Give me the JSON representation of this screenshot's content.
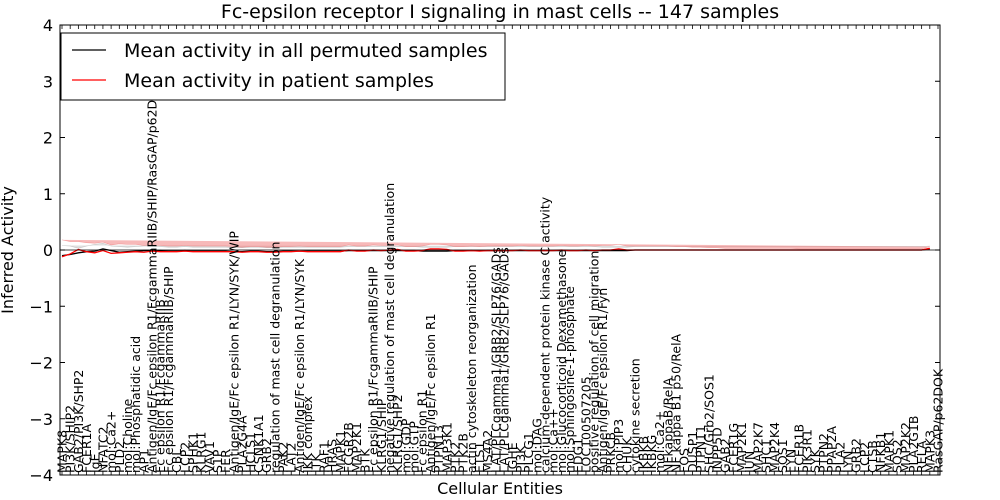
{
  "chart_data": {
    "type": "line",
    "title": "Fc-epsilon receptor I signaling in mast cells -- 147 samples",
    "xlabel": "Cellular Entities",
    "ylabel": "Inferred Activity",
    "ylim": [
      -4,
      4
    ],
    "yticks": [
      4,
      3,
      2,
      1,
      0,
      -1,
      -2,
      -3,
      -4
    ],
    "ytick_labels": [
      "4",
      "3",
      "2",
      "1",
      "0",
      "−1",
      "−2",
      "−3",
      "−4"
    ],
    "legend_position": "top-left",
    "legend": [
      {
        "label": "Mean activity in all permuted samples",
        "color": "#000000"
      },
      {
        "label": "Mean activity in patient samples",
        "color": "#ff0000"
      }
    ],
    "entities": [
      "MAPK8",
      "PI3K/SHIP2",
      "GAB2/PI3K/SHP2",
      "FCER1A",
      "IgE",
      "NFATC2",
      "mol:Ca2+",
      "PLD2",
      "mol:Choline",
      "mol:Phosphatidic acid",
      "AP1",
      "Antigen/IgE/Fc epsilon R1/FcgammaRIIB/SHIP/RasGAP/p62DOK",
      "Fc epsilon R1/FcgammaRIIB",
      "Fc epsilon R1/FcgammaRIIB/SHIP",
      "CBL",
      "LCP2",
      "SPHK1",
      "KLRG1",
      "VAV1",
      "S1P",
      "FER",
      "Antigen/IgE/Fc epsilon R1/LYN/SYK/WIP",
      "PLA2G4A",
      "HCLS1",
      "CSNK1A1",
      "GRB2",
      "regulation of mast cell degranulation",
      "PAK2",
      "LAT2",
      "Antigen/IgE/Fc epsilon R1/LYN/SYK",
      "IKK complex",
      "ITK",
      "RAF1",
      "HRAS",
      "MAPK1",
      "FCGR2B",
      "MAP2K1",
      "BTK",
      "Fc epsilon R1/FcgammaRIIB/SHIP",
      "KLRG1/SHIP",
      "negative regulation of mast cell degranulation",
      "KLRG1/SHP2",
      "mol:GDP",
      "mol:GTP",
      "Fc epsilon R1",
      "Antigen/IgE/Fc epsilon R1",
      "PTPN13",
      "MAP3K1",
      "PTK2",
      "PTK2B",
      "actin cytoskeleton reorganization",
      "ETS1",
      "MS4A2",
      "LAT/PLCgamma1/GRB2/SLP76/GADs",
      "LAT/PLCgamma1/GRB2/SLP76/GADs",
      "IGHE",
      "PI3K",
      "PLCG1",
      "mol:DAG",
      "calcium-dependent protein kinase C activity",
      "mol:Ca++",
      "mol:Glucocorticoid Dexamethasone",
      "mol:Sphingosine-1-phosphate",
      "EDG1",
      "LOC100507205",
      "positive regulation of cell migration",
      "Antigen/IgE/Fc epsilon R1/Fyn",
      "PRKCB",
      "mol:PIP3",
      "CHUK",
      "cytokine secretion",
      "IKBKB",
      "IKBKG",
      "mol:Ca2+",
      "NFkappaB/RelA",
      "NF kappa B1 p50/RelA",
      "FOS",
      "DUSP1",
      "PTPN11",
      "SHC/Grb2/SOS1",
      "INPP5D",
      "GAB2",
      "FCER1G",
      "MAP2K1",
      "JUN",
      "MAP2K7",
      "SHC1",
      "MAP2K4",
      "SOS1",
      "FYN",
      "FCER1B",
      "PIK3R1",
      "SYK",
      "PTPN2",
      "PPAP2A",
      "PLA2",
      "LYN",
      "GRB2",
      "LCP2",
      "CTSB",
      "NFKB1",
      "MAPK1",
      "SOS2",
      "MAP2K2",
      "PLA2G1B",
      "RELA",
      "MAPK3",
      "RasGAP/p62DOK"
    ],
    "series": [
      {
        "name": "Mean activity in all permuted samples",
        "color": "#000000",
        "values": [
          -0.1,
          -0.08,
          -0.05,
          -0.03,
          -0.02,
          0.02,
          -0.01,
          -0.04,
          -0.03,
          -0.02,
          -0.01,
          -0.01,
          -0.01,
          -0.02,
          -0.02,
          -0.01,
          -0.02,
          -0.02,
          -0.02,
          -0.02,
          -0.02,
          -0.03,
          -0.03,
          -0.02,
          -0.02,
          -0.03,
          -0.03,
          -0.02,
          -0.02,
          -0.02,
          -0.02,
          -0.02,
          -0.02,
          -0.02,
          -0.02,
          -0.01,
          -0.01,
          -0.01,
          -0.01,
          -0.01,
          -0.01,
          -0.01,
          -0.01,
          -0.01,
          -0.02,
          -0.02,
          -0.02,
          -0.02,
          -0.01,
          -0.01,
          -0.01,
          -0.01,
          -0.01,
          -0.01,
          -0.01,
          -0.01,
          -0.01,
          -0.01,
          -0.01,
          -0.01,
          -0.01,
          -0.01,
          -0.01,
          -0.01,
          -0.01,
          -0.01,
          -0.01,
          -0.01,
          -0.01,
          -0.01,
          0.0,
          0.0,
          0.0,
          0.0,
          0.0,
          0.0,
          0.0,
          0.0,
          0.0,
          0.0,
          0.0,
          0.0,
          0.0,
          0.0,
          0.0,
          0.0,
          0.0,
          0.0,
          0.0,
          0.0,
          0.0,
          0.0,
          0.0,
          0.0,
          0.0,
          0.0,
          0.0,
          0.0,
          0.0,
          0.0,
          0.0,
          0.0,
          0.0,
          0.0,
          0.0,
          0.0,
          0.02
        ]
      },
      {
        "name": "Mean activity in patient samples",
        "color": "#ff0000",
        "values": [
          -0.12,
          -0.07,
          0.01,
          -0.03,
          -0.05,
          -0.01,
          -0.06,
          -0.05,
          -0.04,
          -0.03,
          -0.04,
          -0.02,
          -0.03,
          -0.03,
          -0.03,
          -0.02,
          -0.03,
          -0.03,
          -0.03,
          -0.03,
          -0.03,
          -0.03,
          -0.04,
          -0.03,
          -0.03,
          -0.04,
          -0.04,
          -0.03,
          -0.03,
          -0.02,
          -0.03,
          -0.03,
          -0.03,
          -0.03,
          -0.03,
          0.0,
          -0.02,
          -0.02,
          0.0,
          -0.01,
          0.0,
          0.01,
          -0.02,
          -0.02,
          -0.01,
          0.02,
          0.02,
          0.01,
          -0.02,
          -0.02,
          -0.01,
          -0.02,
          -0.01,
          -0.01,
          -0.01,
          -0.01,
          0.0,
          -0.01,
          -0.01,
          -0.01,
          -0.01,
          0.0,
          -0.01,
          -0.01,
          0.0,
          -0.01,
          0.0,
          0.0,
          0.02,
          0.0,
          0.0,
          0.0,
          0.0,
          0.0,
          0.0,
          0.0,
          0.0,
          0.0,
          0.0,
          0.0,
          0.0,
          0.0,
          0.0,
          0.0,
          0.0,
          0.0,
          0.0,
          0.0,
          0.0,
          0.0,
          0.0,
          0.0,
          0.0,
          0.0,
          0.0,
          0.0,
          0.0,
          0.0,
          0.0,
          0.0,
          0.0,
          0.0,
          0.0,
          0.0,
          0.0,
          0.0,
          0.03
        ]
      }
    ],
    "band_permuted": [
      0.18,
      0.15,
      0.08,
      0.1,
      0.12,
      0.1,
      0.08,
      0.1,
      0.08,
      0.08,
      0.08,
      0.08,
      0.07,
      0.07,
      0.07,
      0.07,
      0.07,
      0.07,
      0.07,
      0.07,
      0.07,
      0.07,
      0.07,
      0.07,
      0.07,
      0.07,
      0.07,
      0.07,
      0.07,
      0.07,
      0.07,
      0.07,
      0.07,
      0.07,
      0.07,
      0.07,
      0.07,
      0.07,
      0.07,
      0.07,
      0.07,
      0.07,
      0.07,
      0.07,
      0.07,
      0.07,
      0.07,
      0.07,
      0.07,
      0.07,
      0.07,
      0.07,
      0.07,
      0.07,
      0.07,
      0.07,
      0.07,
      0.07,
      0.07,
      0.07,
      0.07,
      0.07,
      0.07,
      0.07,
      0.07,
      0.07,
      0.06,
      0.06,
      0.06,
      0.06,
      0.06,
      0.06,
      0.06,
      0.06,
      0.06,
      0.06,
      0.06,
      0.06,
      0.06,
      0.06,
      0.06,
      0.06,
      0.06,
      0.06,
      0.06,
      0.06,
      0.06,
      0.06,
      0.06,
      0.06,
      0.06,
      0.06,
      0.06,
      0.06,
      0.06,
      0.06,
      0.06,
      0.06,
      0.06,
      0.06,
      0.06,
      0.06,
      0.06,
      0.06,
      0.06,
      0.06,
      0.05
    ],
    "band_patient": [
      0.3,
      0.22,
      0.14,
      0.16,
      0.17,
      0.15,
      0.15,
      0.16,
      0.14,
      0.13,
      0.12,
      0.11,
      0.11,
      0.1,
      0.1,
      0.1,
      0.1,
      0.1,
      0.1,
      0.1,
      0.1,
      0.09,
      0.09,
      0.09,
      0.09,
      0.09,
      0.09,
      0.09,
      0.09,
      0.09,
      0.09,
      0.09,
      0.09,
      0.09,
      0.09,
      0.09,
      0.09,
      0.09,
      0.09,
      0.09,
      0.08,
      0.08,
      0.08,
      0.08,
      0.08,
      0.08,
      0.08,
      0.08,
      0.08,
      0.08,
      0.08,
      0.08,
      0.08,
      0.08,
      0.08,
      0.08,
      0.08,
      0.08,
      0.08,
      0.08,
      0.08,
      0.08,
      0.08,
      0.08,
      0.08,
      0.08,
      0.08,
      0.08,
      0.08,
      0.07,
      0.07,
      0.07,
      0.07,
      0.07,
      0.07,
      0.06,
      0.06,
      0.05,
      0.05,
      0.04,
      0.04,
      0.03,
      0.03,
      0.03,
      0.03,
      0.03,
      0.03,
      0.03,
      0.03,
      0.03,
      0.02,
      0.02,
      0.02,
      0.02,
      0.02,
      0.02,
      0.02,
      0.02,
      0.02,
      0.02,
      0.02,
      0.02,
      0.02,
      0.02,
      0.02,
      0.02,
      0.03
    ]
  }
}
